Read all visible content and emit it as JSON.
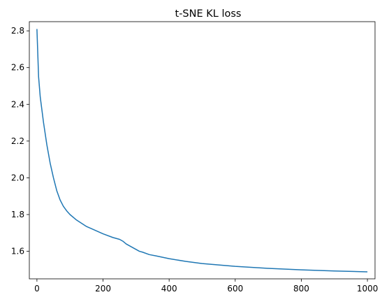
{
  "chart_data": {
    "type": "line",
    "title": "t-SNE KL loss",
    "xlabel": "",
    "ylabel": "",
    "xlim": [
      -23,
      1023
    ],
    "ylim": [
      1.45,
      2.85
    ],
    "xticks": [
      0,
      200,
      400,
      600,
      800,
      1000
    ],
    "xtick_labels": [
      "0",
      "200",
      "400",
      "600",
      "800",
      "1000"
    ],
    "yticks": [
      1.6,
      1.8,
      2.0,
      2.2,
      2.4,
      2.6,
      2.8
    ],
    "ytick_labels": [
      "1.6",
      "1.8",
      "2.0",
      "2.2",
      "2.4",
      "2.6",
      "2.8"
    ],
    "grid": false,
    "series": [
      {
        "color": "#1f77b4",
        "x": [
          0,
          5,
          10,
          20,
          30,
          40,
          50,
          60,
          70,
          80,
          90,
          100,
          120,
          150,
          200,
          230,
          250,
          260,
          270,
          290,
          310,
          320,
          340,
          360,
          400,
          450,
          500,
          600,
          700,
          800,
          900,
          1000
        ],
        "y": [
          2.81,
          2.55,
          2.44,
          2.3,
          2.18,
          2.08,
          2.0,
          1.93,
          1.88,
          1.845,
          1.82,
          1.8,
          1.77,
          1.735,
          1.695,
          1.675,
          1.665,
          1.655,
          1.64,
          1.62,
          1.6,
          1.595,
          1.582,
          1.575,
          1.56,
          1.545,
          1.533,
          1.518,
          1.507,
          1.499,
          1.493,
          1.488
        ]
      }
    ]
  }
}
